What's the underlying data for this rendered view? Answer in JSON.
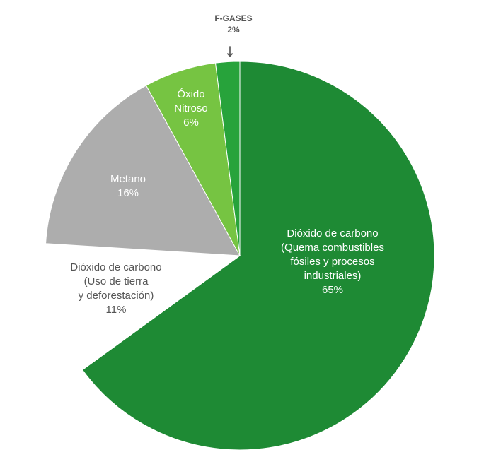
{
  "chart_data": {
    "type": "pie",
    "slices": [
      {
        "lines": [
          "Dióxido de carbono",
          "(Quema combustibles",
          "fósiles y procesos",
          "industriales)"
        ],
        "pct_label": "65%",
        "value": 65,
        "color": "#1e8a34",
        "text_color": "#ffffff"
      },
      {
        "lines": [
          "Dióxido de carbono",
          "(Uso de tierra",
          "y deforestación)"
        ],
        "pct_label": "11%",
        "value": 11,
        "color": "#ffffff",
        "text_color": "#555555"
      },
      {
        "lines": [
          "Metano"
        ],
        "pct_label": "16%",
        "value": 16,
        "color": "#adadad",
        "text_color": "#ffffff"
      },
      {
        "lines": [
          "Óxido",
          "Nitroso"
        ],
        "pct_label": "6%",
        "value": 6,
        "color": "#76c442",
        "text_color": "#ffffff"
      },
      {
        "lines": [
          "F-GASES"
        ],
        "pct_label": "2%",
        "value": 2,
        "color": "#27a33b",
        "text_color": "#555555",
        "external": true
      }
    ],
    "arrow_glyph": "↓"
  }
}
